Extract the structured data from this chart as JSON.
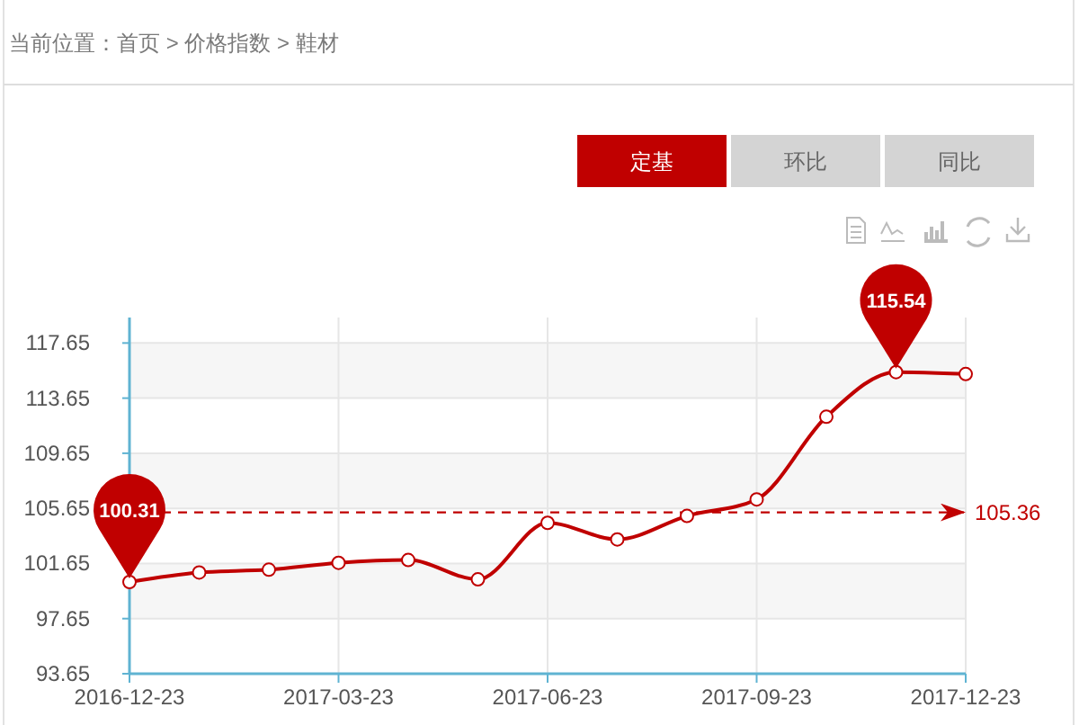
{
  "chart_data": {
    "type": "line",
    "title": "当前位置：首页 > 价格指数 > 鞋材",
    "annotations": [
      "定基",
      "环比",
      "同比"
    ],
    "categories": [
      "2016-12-23",
      null,
      null,
      "2017-03-23",
      null,
      null,
      "2017-06-23",
      null,
      null,
      "2017-09-23",
      null,
      null,
      "2017-12-23"
    ],
    "series": [
      {
        "color": "#c00000",
        "values": [
          100.31,
          101.0,
          101.2,
          101.7,
          101.9,
          100.5,
          104.6,
          103.4,
          105.1,
          106.3,
          112.3,
          115.54,
          115.4
        ],
        "value_labels": [
          "100.31",
          null,
          null,
          null,
          null,
          null,
          null,
          null,
          null,
          null,
          null,
          "115.54",
          null
        ]
      }
    ],
    "ylim": [
      93.65,
      119.5
    ],
    "yticks": [
      93.65,
      97.65,
      101.65,
      105.65,
      109.65,
      113.65,
      117.65
    ],
    "grid": true,
    "marker": "circle",
    "ref_lines": [
      {
        "axis": "y",
        "value": 105.36,
        "label": "105.36",
        "color": "#c00000",
        "line_style": "dashed"
      }
    ]
  }
}
